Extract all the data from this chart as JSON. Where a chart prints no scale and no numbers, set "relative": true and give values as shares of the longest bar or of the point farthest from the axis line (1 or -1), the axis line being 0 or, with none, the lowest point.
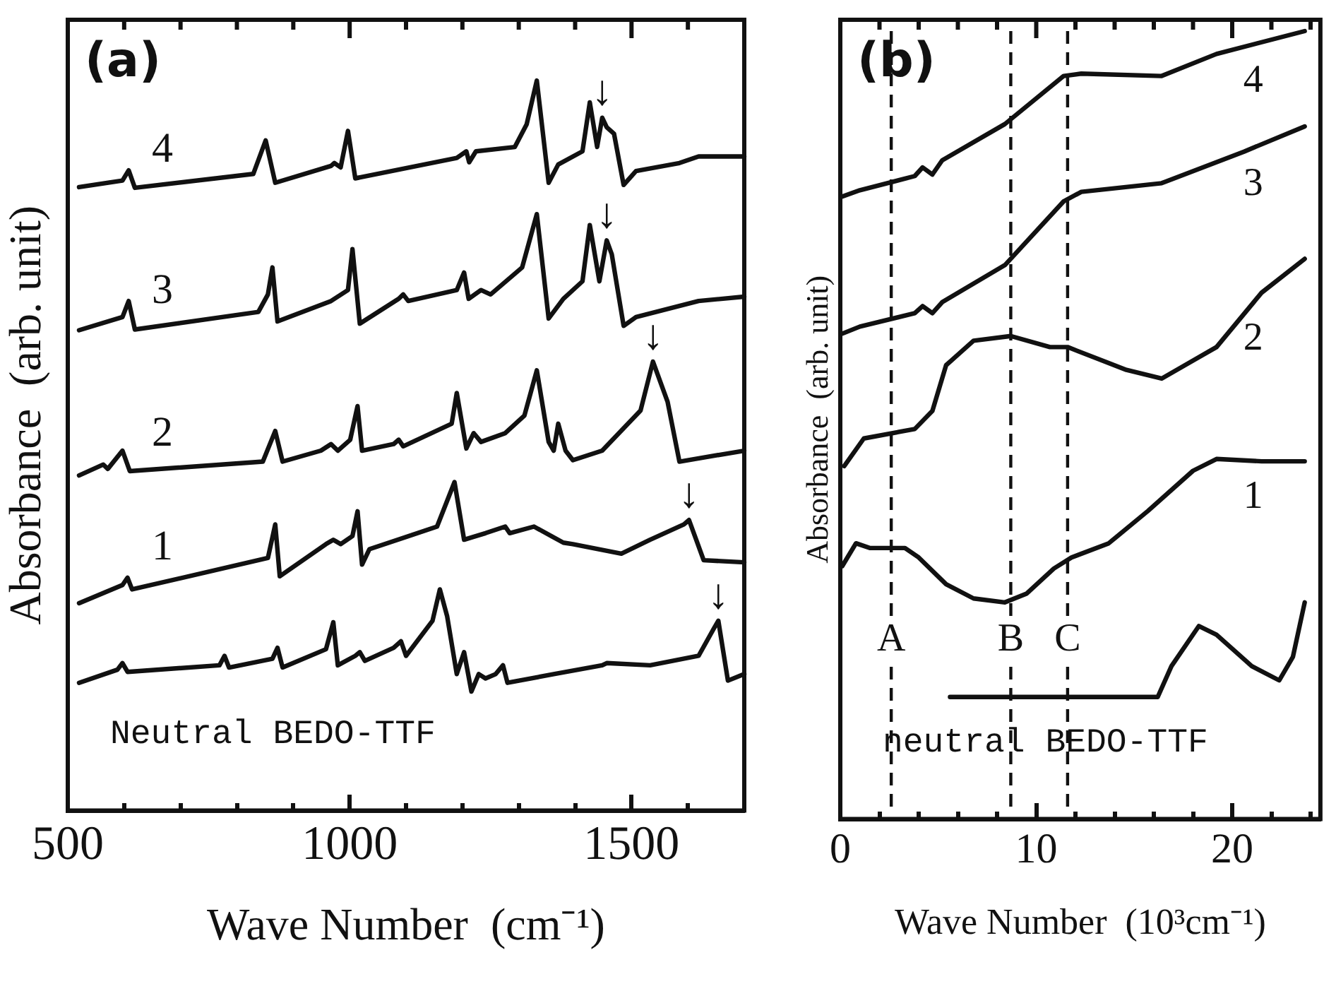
{
  "chart_data": [
    {
      "type": "line",
      "xlabel": "Wave Number  (cm⁻¹)",
      "ylabel": "Absorbance  (arb. unit)",
      "relative": true,
      "marker": "none",
      "line_style": "solid",
      "xlim": [
        500,
        1700
      ],
      "xticks": [
        500,
        {
          "value": 600,
          "label": null
        },
        {
          "value": 700,
          "label": null
        },
        {
          "value": 800,
          "label": null
        },
        {
          "value": 900,
          "label": null
        },
        1000,
        {
          "value": 1100,
          "label": null
        },
        {
          "value": 1200,
          "label": null
        },
        {
          "value": 1300,
          "label": null
        },
        {
          "value": 1400,
          "label": null
        },
        1500,
        {
          "value": 1600,
          "label": null
        }
      ],
      "series": [
        {
          "name": "4",
          "color": "#111111",
          "x": [
            520,
            597,
            608,
            619,
            829,
            851,
            868,
            967,
            973,
            984,
            997,
            1010,
            1190,
            1207,
            1212,
            1224,
            1293,
            1314,
            1332,
            1353,
            1370,
            1413,
            1426,
            1439,
            1448,
            1456,
            1469,
            1486,
            1508,
            1585,
            1619,
            1700
          ],
          "values": [
            0.854,
            0.863,
            0.877,
            0.853,
            0.872,
            0.918,
            0.86,
            0.883,
            0.887,
            0.881,
            0.931,
            0.866,
            0.894,
            0.903,
            0.888,
            0.903,
            0.909,
            0.94,
            1,
            0.86,
            0.885,
            0.903,
            0.97,
            0.909,
            0.949,
            0.936,
            0.927,
            0.857,
            0.876,
            0.887,
            0.896,
            0.896
          ]
        },
        {
          "name": "3",
          "color": "#111111",
          "x": [
            520,
            597,
            608,
            619,
            838,
            855,
            863,
            872,
            967,
            997,
            1005,
            1018,
            1087,
            1095,
            1104,
            1190,
            1203,
            1211,
            1233,
            1250,
            1306,
            1332,
            1353,
            1379,
            1413,
            1426,
            1443,
            1456,
            1465,
            1486,
            1508,
            1619,
            1700
          ],
          "values": [
            0.658,
            0.676,
            0.698,
            0.659,
            0.683,
            0.707,
            0.744,
            0.67,
            0.698,
            0.713,
            0.769,
            0.667,
            0.701,
            0.707,
            0.698,
            0.713,
            0.737,
            0.701,
            0.713,
            0.707,
            0.744,
            0.817,
            0.674,
            0.701,
            0.725,
            0.802,
            0.725,
            0.781,
            0.762,
            0.664,
            0.676,
            0.698,
            0.704
          ]
        },
        {
          "name": "2",
          "color": "#111111",
          "x": [
            520,
            563,
            571,
            597,
            610,
            846,
            868,
            881,
            949,
            967,
            979,
            1001,
            1014,
            1022,
            1078,
            1087,
            1095,
            1181,
            1190,
            1207,
            1220,
            1233,
            1276,
            1310,
            1332,
            1353,
            1362,
            1370,
            1383,
            1396,
            1448,
            1516,
            1538,
            1564,
            1585,
            1700
          ],
          "values": [
            0.459,
            0.474,
            0.468,
            0.493,
            0.465,
            0.478,
            0.52,
            0.478,
            0.493,
            0.502,
            0.493,
            0.508,
            0.554,
            0.493,
            0.502,
            0.508,
            0.499,
            0.53,
            0.572,
            0.496,
            0.517,
            0.505,
            0.517,
            0.541,
            0.603,
            0.505,
            0.493,
            0.53,
            0.493,
            0.48,
            0.493,
            0.548,
            0.615,
            0.56,
            0.478,
            0.493
          ]
        },
        {
          "name": "1",
          "color": "#111111",
          "x": [
            520,
            597,
            606,
            614,
            855,
            868,
            876,
            958,
            971,
            984,
            1005,
            1014,
            1022,
            1035,
            1155,
            1186,
            1203,
            1241,
            1276,
            1284,
            1327,
            1379,
            1396,
            1482,
            1533,
            1593,
            1602,
            1628,
            1700
          ],
          "values": [
            0.284,
            0.309,
            0.319,
            0.303,
            0.346,
            0.392,
            0.321,
            0.365,
            0.371,
            0.365,
            0.376,
            0.41,
            0.337,
            0.358,
            0.389,
            0.45,
            0.371,
            0.38,
            0.389,
            0.38,
            0.389,
            0.367,
            0.365,
            0.352,
            0.371,
            0.392,
            0.398,
            0.343,
            0.34
          ]
        },
        {
          "color": "#111111",
          "x": [
            520,
            588,
            597,
            606,
            769,
            778,
            786,
            863,
            872,
            881,
            958,
            971,
            979,
            1010,
            1018,
            1027,
            1078,
            1091,
            1100,
            1147,
            1160,
            1173,
            1190,
            1203,
            1216,
            1229,
            1241,
            1259,
            1272,
            1280,
            1362,
            1448,
            1456,
            1533,
            1619,
            1645,
            1654,
            1671,
            1700
          ],
          "values": [
            0.175,
            0.193,
            0.202,
            0.19,
            0.199,
            0.212,
            0.196,
            0.208,
            0.223,
            0.196,
            0.221,
            0.258,
            0.199,
            0.212,
            0.217,
            0.205,
            0.223,
            0.232,
            0.212,
            0.26,
            0.303,
            0.266,
            0.187,
            0.217,
            0.163,
            0.187,
            0.181,
            0.187,
            0.199,
            0.175,
            0.187,
            0.199,
            0.202,
            0.199,
            0.212,
            0.248,
            0.26,
            0.178,
            0.187
          ]
        }
      ],
      "annotations": [
        "(a)",
        "Neutral BEDO-TTF",
        {
          "text": "↓",
          "x": 1448,
          "y": 0.949
        },
        {
          "text": "↓",
          "x": 1456,
          "y": 0.781
        },
        {
          "text": "↓",
          "x": 1538,
          "y": 0.615
        },
        {
          "text": "↓",
          "x": 1602,
          "y": 0.398
        },
        {
          "text": "↓",
          "x": 1654,
          "y": 0.26
        }
      ]
    },
    {
      "type": "line",
      "xlabel": "Wave Number  (10³cm⁻¹)",
      "ylabel": "Absorbance  (arb. unit)",
      "relative": true,
      "marker": "none",
      "line_style": "solid",
      "xlim": [
        0,
        24.5
      ],
      "xticks": [
        0,
        {
          "value": 2,
          "label": null
        },
        {
          "value": 4,
          "label": null
        },
        {
          "value": 6,
          "label": null
        },
        {
          "value": 8,
          "label": null
        },
        10,
        {
          "value": 12,
          "label": null
        },
        {
          "value": 14,
          "label": null
        },
        {
          "value": 16,
          "label": null
        },
        {
          "value": 18,
          "label": null
        },
        20,
        {
          "value": 22,
          "label": null
        },
        {
          "value": 24,
          "label": null
        }
      ],
      "series": [
        {
          "name": "4",
          "color": "#111111",
          "x": [
            0.1,
            1,
            3.8,
            4.2,
            4.7,
            5.2,
            8.4,
            11.4,
            12.3,
            16.4,
            19.2,
            23.7
          ],
          "values": [
            0.79,
            0.798,
            0.816,
            0.827,
            0.818,
            0.836,
            0.882,
            0.943,
            0.946,
            0.943,
            0.971,
            1
          ]
        },
        {
          "name": "3",
          "color": "#111111",
          "x": [
            0.1,
            1,
            3.8,
            4.2,
            4.7,
            5.2,
            8.4,
            11.4,
            12.3,
            16.4,
            20.6,
            23.7
          ],
          "values": [
            0.616,
            0.625,
            0.642,
            0.651,
            0.642,
            0.656,
            0.703,
            0.784,
            0.796,
            0.807,
            0.847,
            0.879
          ]
        },
        {
          "name": "2",
          "color": "#111111",
          "x": [
            0.2,
            1.2,
            3.8,
            4.7,
            5.4,
            6.8,
            8.7,
            10.7,
            11.6,
            14.6,
            16.4,
            19.2,
            21.5,
            23.7
          ],
          "values": [
            0.448,
            0.483,
            0.495,
            0.518,
            0.576,
            0.607,
            0.613,
            0.599,
            0.599,
            0.57,
            0.559,
            0.599,
            0.668,
            0.711
          ]
        },
        {
          "name": "1",
          "color": "#111111",
          "x": [
            0.1,
            0.8,
            1.5,
            2.6,
            3.3,
            4,
            5.4,
            6.8,
            8.4,
            9.5,
            10.9,
            11.8,
            13.7,
            15.7,
            18,
            19.2,
            21.5,
            23.7
          ],
          "values": [
            0.321,
            0.35,
            0.344,
            0.344,
            0.344,
            0.332,
            0.298,
            0.28,
            0.275,
            0.286,
            0.318,
            0.332,
            0.35,
            0.391,
            0.442,
            0.457,
            0.454,
            0.454
          ]
        },
        {
          "color": "#111111",
          "x": [
            5.6,
            11.4,
            16.2,
            16.9,
            18.3,
            19.2,
            21,
            22.4,
            23.1,
            23.7
          ],
          "values": [
            0.155,
            0.155,
            0.155,
            0.194,
            0.245,
            0.234,
            0.194,
            0.176,
            0.206,
            0.275
          ]
        }
      ],
      "ref_lines": [
        {
          "axis": "x",
          "value": 2.6,
          "label": "A",
          "line_style": "dashed",
          "color": "#111111"
        },
        {
          "axis": "x",
          "value": 8.7,
          "label": "B",
          "line_style": "dashed",
          "color": "#111111"
        },
        {
          "axis": "x",
          "value": 11.6,
          "label": "C",
          "line_style": "dashed",
          "color": "#111111"
        }
      ],
      "annotations": [
        "(b)",
        "neutral BEDO-TTF"
      ]
    }
  ]
}
